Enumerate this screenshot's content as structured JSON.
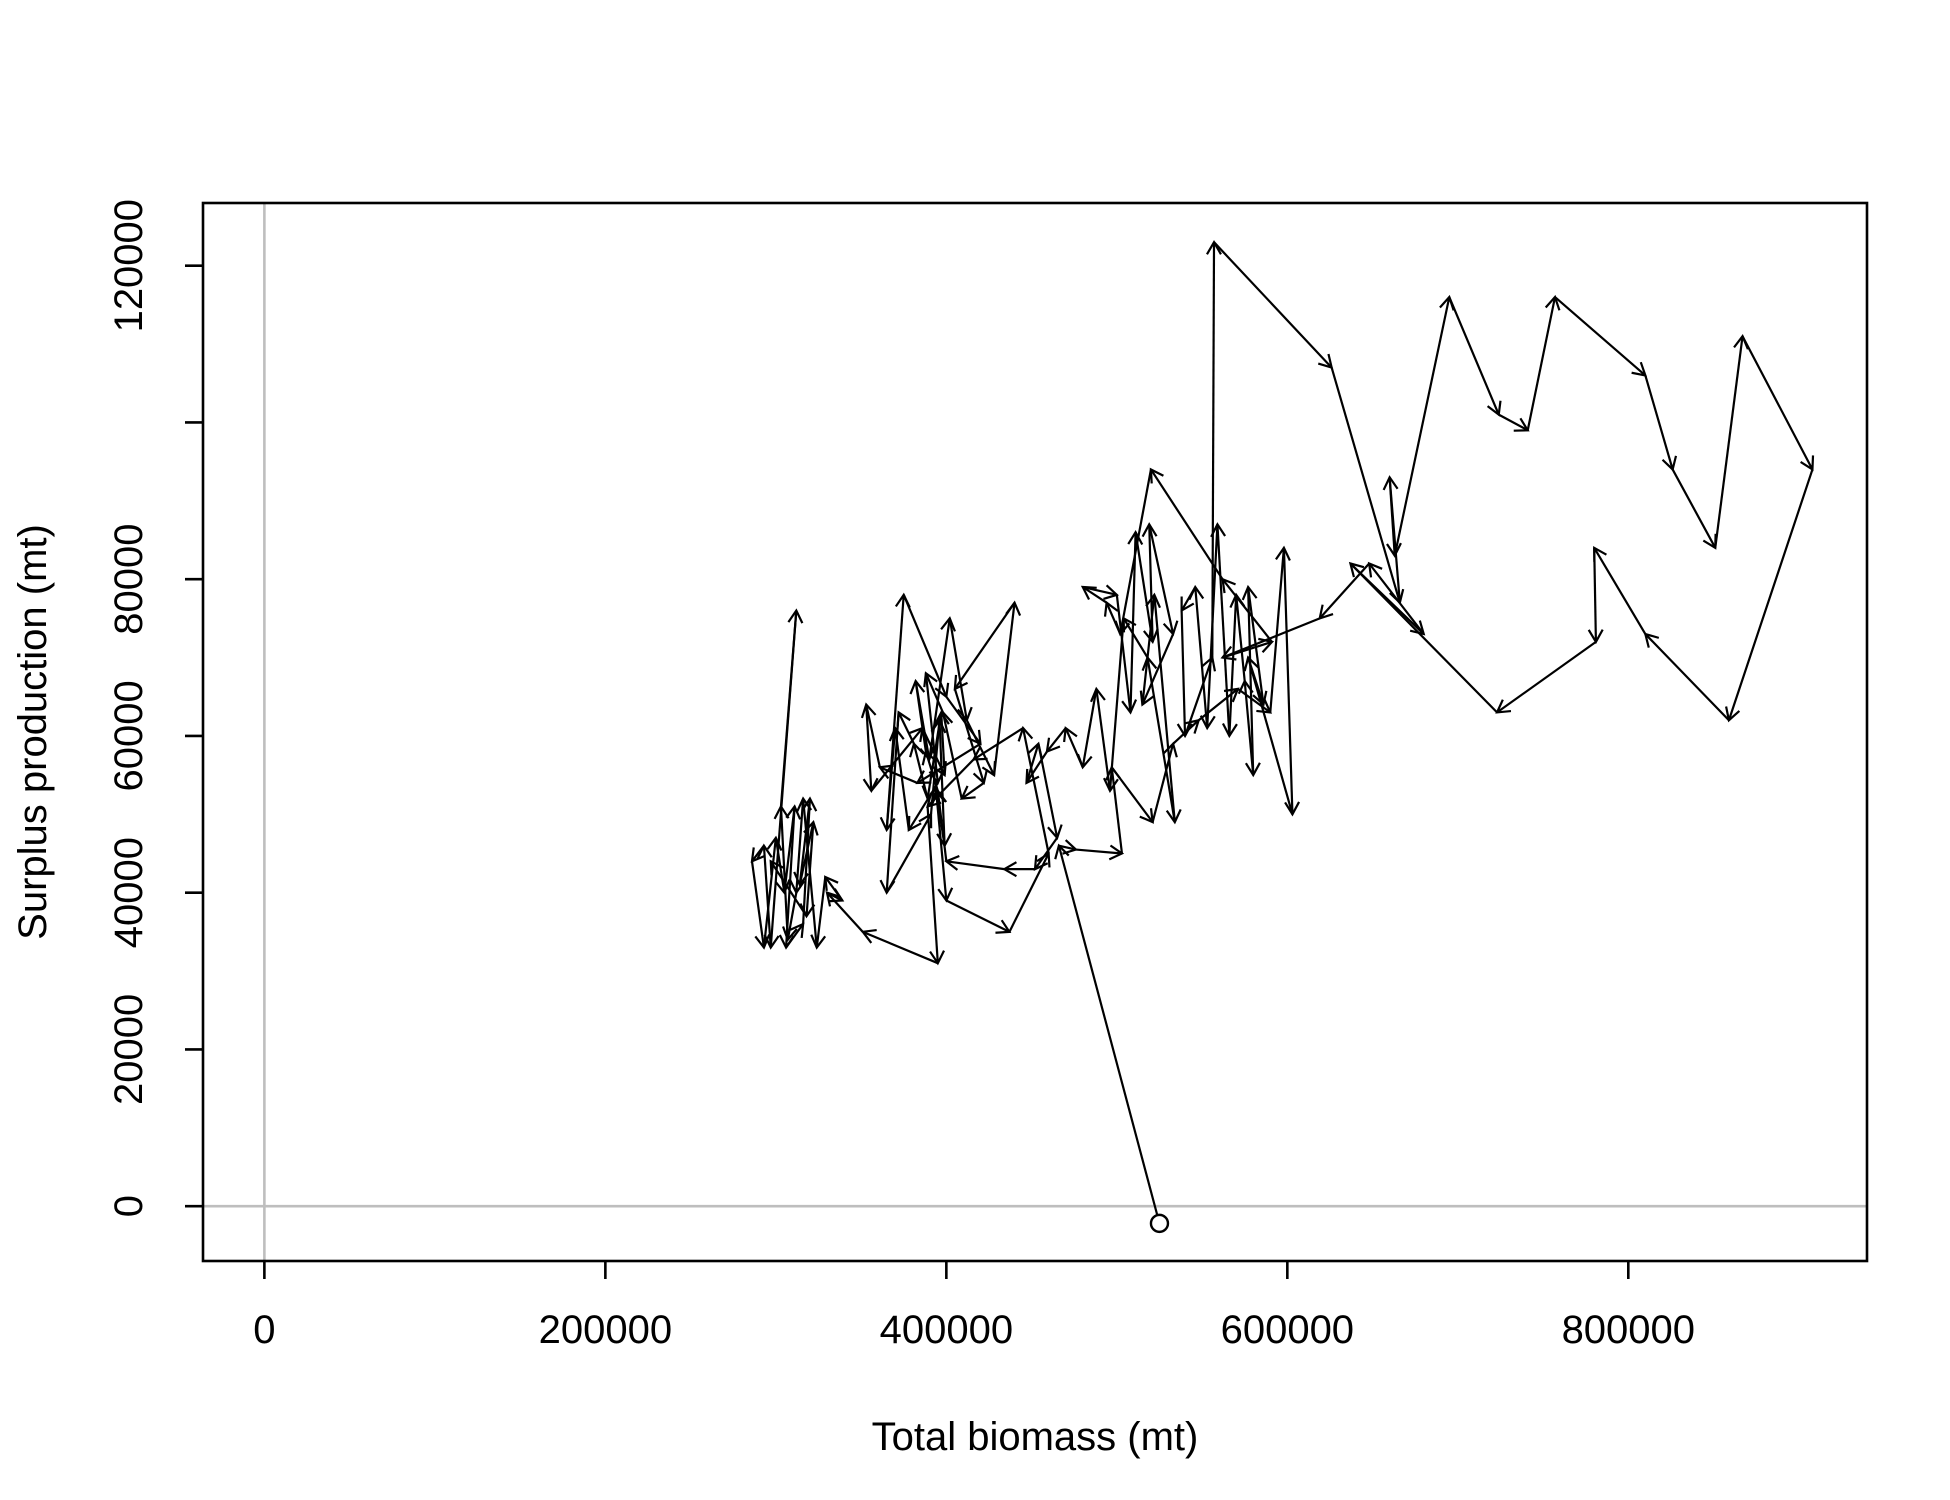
{
  "chart_data": {
    "type": "line",
    "xlabel": "Total biomass (mt)",
    "ylabel": "Surplus production (mt)",
    "xlim": [
      -36000,
      940000
    ],
    "ylim": [
      -7000,
      128000
    ],
    "x_ticks": [
      0,
      200000,
      400000,
      600000,
      800000
    ],
    "x_tick_labels": [
      "0",
      "200000",
      "400000",
      "600000",
      "800000"
    ],
    "y_ticks": [
      0,
      20000,
      40000,
      60000,
      80000,
      100000,
      120000
    ],
    "y_tick_labels": [
      "0",
      "20000",
      "40000",
      "60000",
      "80000",
      "",
      "120000"
    ],
    "reference_lines": {
      "x": 0,
      "y": 0,
      "color": "#bebebe"
    },
    "start_marker": "open-circle",
    "line_color": "#000000",
    "series": [
      {
        "points": [
          [
            525000,
            -2200
          ],
          [
            466000,
            46000
          ],
          [
            476000,
            45500
          ],
          [
            503000,
            45000
          ],
          [
            497000,
            56000
          ],
          [
            521000,
            49000
          ],
          [
            533000,
            59000
          ],
          [
            548000,
            62000
          ],
          [
            571000,
            66000
          ],
          [
            590000,
            63000
          ],
          [
            598000,
            84000
          ],
          [
            603000,
            50000
          ],
          [
            577000,
            70000
          ],
          [
            586000,
            64000
          ],
          [
            577000,
            79000
          ],
          [
            580000,
            55000
          ],
          [
            575000,
            67000
          ],
          [
            570000,
            78000
          ],
          [
            566000,
            60000
          ],
          [
            559000,
            87000
          ],
          [
            553000,
            61000
          ],
          [
            546000,
            79000
          ],
          [
            538000,
            76000
          ],
          [
            540000,
            60000
          ],
          [
            556000,
            70000
          ],
          [
            557000,
            123000
          ],
          [
            626000,
            107000
          ],
          [
            666000,
            77000
          ],
          [
            660000,
            93000
          ],
          [
            663000,
            83000
          ],
          [
            695000,
            116000
          ],
          [
            724000,
            101000
          ],
          [
            741000,
            99000
          ],
          [
            757000,
            116000
          ],
          [
            810000,
            106000
          ],
          [
            826000,
            94000
          ],
          [
            851000,
            84000
          ],
          [
            867000,
            111000
          ],
          [
            908000,
            94000
          ],
          [
            859000,
            62000
          ],
          [
            810000,
            73000
          ],
          [
            780000,
            84000
          ],
          [
            781000,
            72000
          ],
          [
            723000,
            63000
          ],
          [
            637000,
            82000
          ],
          [
            680000,
            73000
          ],
          [
            648000,
            82000
          ],
          [
            619000,
            75000
          ],
          [
            562000,
            70000
          ],
          [
            591000,
            72000
          ],
          [
            562000,
            80000
          ],
          [
            520000,
            94000
          ],
          [
            502000,
            73000
          ],
          [
            494000,
            77000
          ],
          [
            480000,
            79000
          ],
          [
            500000,
            78000
          ],
          [
            508000,
            63000
          ],
          [
            511000,
            86000
          ],
          [
            521000,
            72000
          ],
          [
            519000,
            87000
          ],
          [
            533000,
            73000
          ],
          [
            515000,
            64000
          ],
          [
            522000,
            78000
          ],
          [
            534000,
            49000
          ],
          [
            518000,
            70000
          ],
          [
            504000,
            75000
          ],
          [
            496000,
            53000
          ],
          [
            488000,
            66000
          ],
          [
            480000,
            56000
          ],
          [
            470000,
            61000
          ],
          [
            459000,
            58000
          ],
          [
            447000,
            54000
          ],
          [
            454000,
            59000
          ],
          [
            465000,
            47000
          ],
          [
            452000,
            43000
          ],
          [
            434000,
            43000
          ],
          [
            400000,
            44000
          ],
          [
            395000,
            53000
          ],
          [
            388000,
            58000
          ],
          [
            382000,
            67000
          ],
          [
            390000,
            57000
          ],
          [
            402000,
            75000
          ],
          [
            412000,
            62000
          ],
          [
            428000,
            55000
          ],
          [
            440000,
            77000
          ],
          [
            405000,
            66000
          ],
          [
            422000,
            54000
          ],
          [
            409000,
            52000
          ],
          [
            398000,
            63000
          ],
          [
            388000,
            68000
          ],
          [
            395000,
            54000
          ],
          [
            378000,
            48000
          ],
          [
            370000,
            61000
          ],
          [
            365000,
            48000
          ],
          [
            375000,
            78000
          ],
          [
            400000,
            65000
          ],
          [
            420000,
            59000
          ],
          [
            383000,
            54000
          ],
          [
            361000,
            56000
          ],
          [
            353000,
            64000
          ],
          [
            356000,
            53000
          ],
          [
            386000,
            61000
          ],
          [
            399000,
            55000
          ],
          [
            397000,
            63000
          ],
          [
            389000,
            52000
          ],
          [
            381000,
            59000
          ],
          [
            372000,
            63000
          ],
          [
            365000,
            40000
          ],
          [
            391000,
            50000
          ],
          [
            396000,
            62000
          ],
          [
            399000,
            46000
          ],
          [
            394000,
            53000
          ],
          [
            400000,
            39000
          ],
          [
            437000,
            35000
          ],
          [
            460000,
            45000
          ],
          [
            445000,
            61000
          ],
          [
            416000,
            57000
          ],
          [
            389000,
            51000
          ],
          [
            395000,
            31000
          ],
          [
            351000,
            35000
          ],
          [
            330000,
            40000
          ],
          [
            339000,
            39000
          ],
          [
            329000,
            42000
          ],
          [
            324000,
            33000
          ],
          [
            316000,
            52000
          ],
          [
            312000,
            40000
          ],
          [
            307000,
            34000
          ],
          [
            303000,
            51000
          ],
          [
            312000,
            76000
          ],
          [
            297000,
            33000
          ],
          [
            293000,
            46000
          ],
          [
            286000,
            44000
          ],
          [
            293000,
            33000
          ],
          [
            300000,
            47000
          ],
          [
            305000,
            40000
          ],
          [
            311000,
            51000
          ],
          [
            306000,
            33000
          ],
          [
            316000,
            36000
          ],
          [
            320000,
            52000
          ],
          [
            314000,
            41000
          ],
          [
            322000,
            49000
          ],
          [
            318000,
            37000
          ],
          [
            297000,
            44000
          ]
        ]
      }
    ]
  }
}
